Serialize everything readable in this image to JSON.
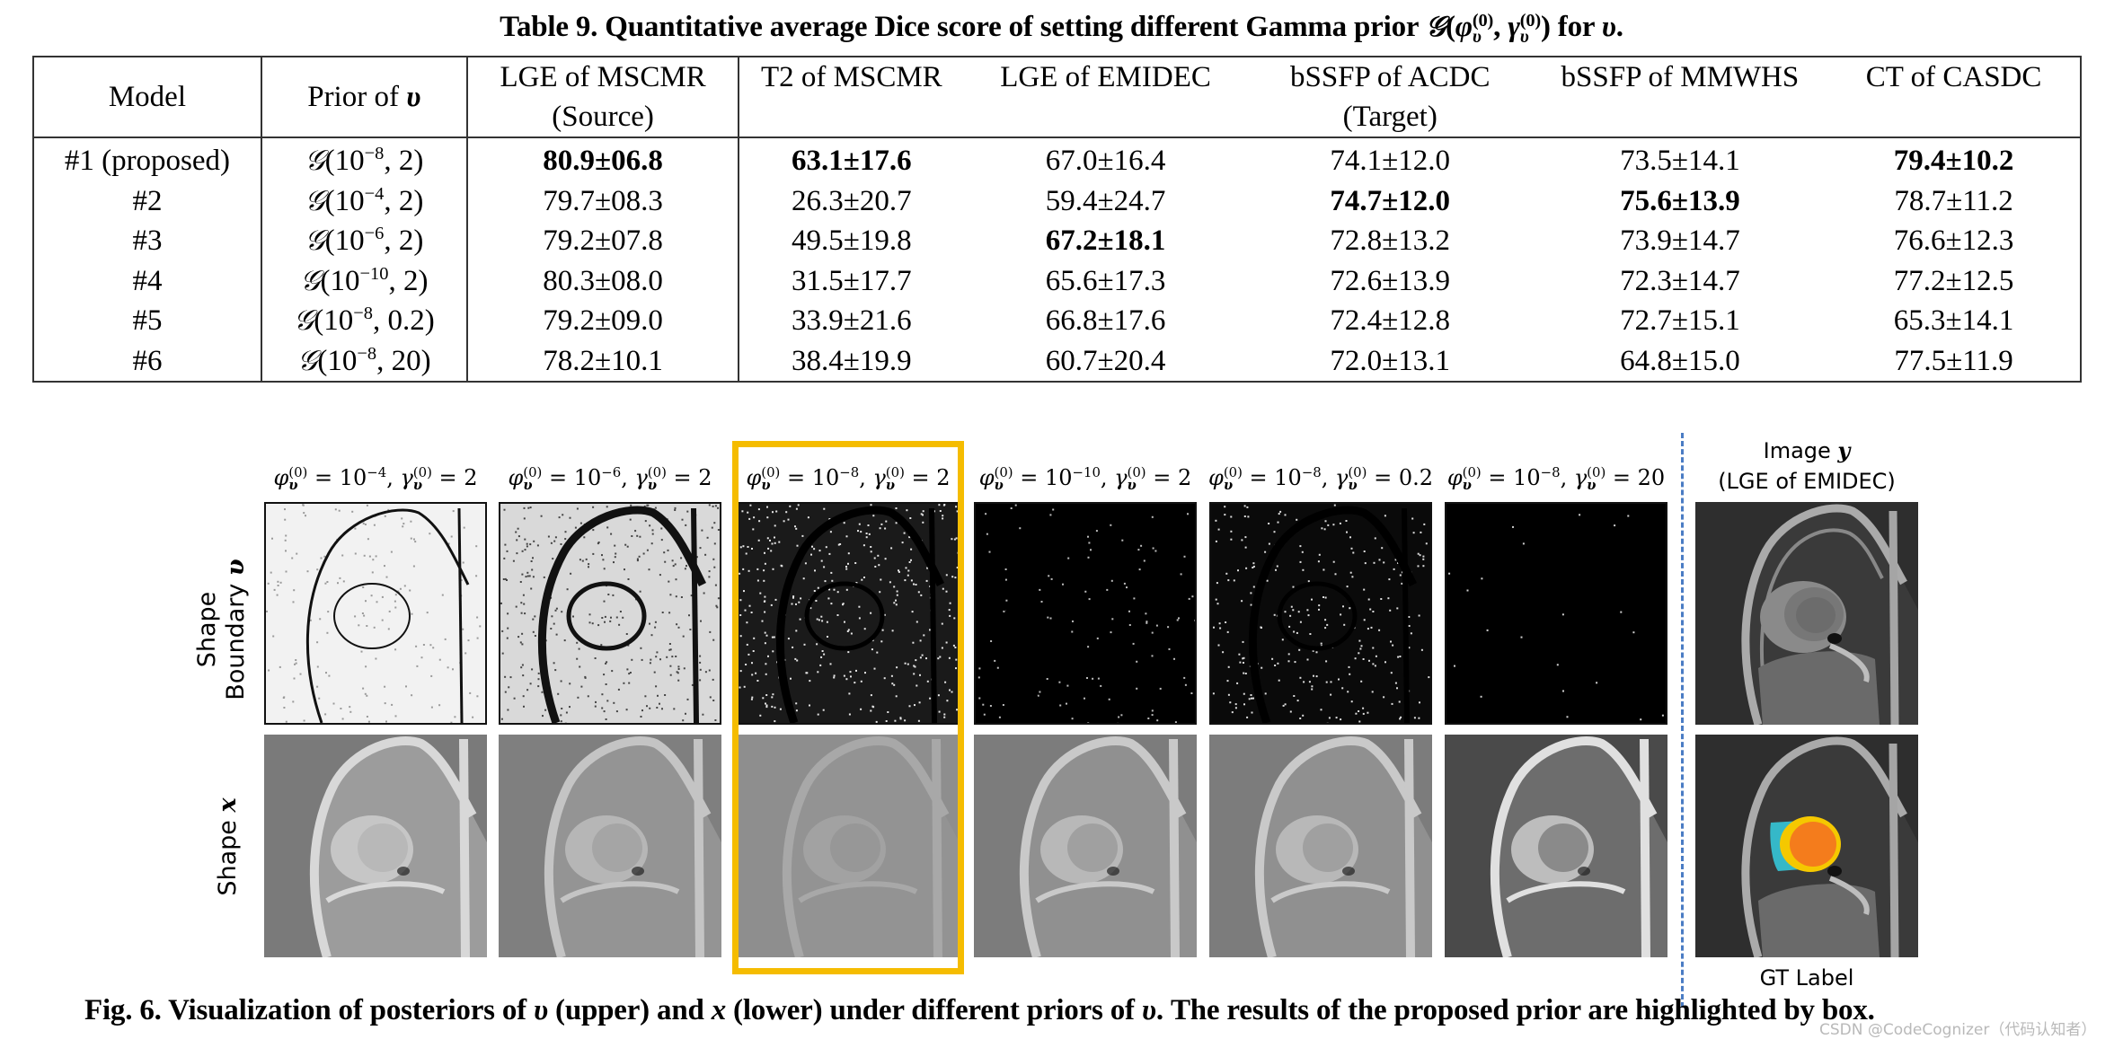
{
  "table": {
    "caption_prefix": "Table 9. Quantitative average Dice score of setting different Gamma prior ",
    "caption_symbol": "𝒢",
    "caption_args": "(φ_υ^(0), γ_υ^(0))",
    "caption_suffix": " for ",
    "caption_var": "υ",
    "caption_end": ".",
    "headers": [
      {
        "line1": "Model",
        "line2": ""
      },
      {
        "line1": "Prior of ",
        "var": "υ",
        "line2": ""
      },
      {
        "line1": "LGE of MSCMR",
        "line2": "(Source)"
      },
      {
        "line1": "T2 of MSCMR",
        "line2": ""
      },
      {
        "line1": "LGE of EMIDEC",
        "line2": ""
      },
      {
        "line1": "bSSFP of ACDC",
        "line2": "(Target)"
      },
      {
        "line1": "bSSFP of MMWHS",
        "line2": ""
      },
      {
        "line1": "CT of CASDC",
        "line2": ""
      }
    ],
    "rows": [
      {
        "model": "#1 (proposed)",
        "prior_exp": "−8",
        "prior_gamma": "2",
        "values": [
          "80.9±06.8",
          "63.1±17.6",
          "67.0±16.4",
          "74.1±12.0",
          "73.5±14.1",
          "79.4±10.2"
        ],
        "bold": [
          true,
          true,
          false,
          false,
          false,
          true
        ]
      },
      {
        "model": "#2",
        "prior_exp": "−4",
        "prior_gamma": "2",
        "values": [
          "79.7±08.3",
          "26.3±20.7",
          "59.4±24.7",
          "74.7±12.0",
          "75.6±13.9",
          "78.7±11.2"
        ],
        "bold": [
          false,
          false,
          false,
          true,
          true,
          false
        ]
      },
      {
        "model": "#3",
        "prior_exp": "−6",
        "prior_gamma": "2",
        "values": [
          "79.2±07.8",
          "49.5±19.8",
          "67.2±18.1",
          "72.8±13.2",
          "73.9±14.7",
          "76.6±12.3"
        ],
        "bold": [
          false,
          false,
          true,
          false,
          false,
          false
        ]
      },
      {
        "model": "#4",
        "prior_exp": "−10",
        "prior_gamma": "2",
        "values": [
          "80.3±08.0",
          "31.5±17.7",
          "65.6±17.3",
          "72.6±13.9",
          "72.3±14.7",
          "77.2±12.5"
        ],
        "bold": [
          false,
          false,
          false,
          false,
          false,
          false
        ]
      },
      {
        "model": "#5",
        "prior_exp": "−8",
        "prior_gamma": "0.2",
        "values": [
          "79.2±09.0",
          "33.9±21.6",
          "66.8±17.6",
          "72.4±12.8",
          "72.7±15.1",
          "65.3±14.1"
        ],
        "bold": [
          false,
          false,
          false,
          false,
          false,
          false
        ]
      },
      {
        "model": "#6",
        "prior_exp": "−8",
        "prior_gamma": "20",
        "values": [
          "78.2±10.1",
          "38.4±19.9",
          "60.7±20.4",
          "72.0±13.1",
          "64.8±15.0",
          "77.5±11.9"
        ],
        "bold": [
          false,
          false,
          false,
          false,
          false,
          false
        ]
      }
    ]
  },
  "chart_data": {
    "type": "table",
    "title": "Table 9. Quantitative average Dice score of setting different Gamma prior G(φ_υ^(0), γ_υ^(0)) for υ.",
    "columns": [
      "Model",
      "Prior of υ",
      "LGE of MSCMR (Source)",
      "T2 of MSCMR",
      "LGE of EMIDEC",
      "bSSFP of ACDC",
      "bSSFP of MMWHS",
      "CT of CASDC"
    ],
    "column_group": {
      "Source": [
        "LGE of MSCMR"
      ],
      "Target": [
        "T2 of MSCMR",
        "LGE of EMIDEC",
        "bSSFP of ACDC",
        "bSSFP of MMWHS",
        "CT of CASDC"
      ]
    },
    "rows": [
      [
        "#1 (proposed)",
        "G(10^-8, 2)",
        "80.9±06.8",
        "63.1±17.6",
        "67.0±16.4",
        "74.1±12.0",
        "73.5±14.1",
        "79.4±10.2"
      ],
      [
        "#2",
        "G(10^-4, 2)",
        "79.7±08.3",
        "26.3±20.7",
        "59.4±24.7",
        "74.7±12.0",
        "75.6±13.9",
        "78.7±11.2"
      ],
      [
        "#3",
        "G(10^-6, 2)",
        "79.2±07.8",
        "49.5±19.8",
        "67.2±18.1",
        "72.8±13.2",
        "73.9±14.7",
        "76.6±12.3"
      ],
      [
        "#4",
        "G(10^-10, 2)",
        "80.3±08.0",
        "31.5±17.7",
        "65.6±17.3",
        "72.6±13.9",
        "72.3±14.7",
        "77.2±12.5"
      ],
      [
        "#5",
        "G(10^-8, 0.2)",
        "79.2±09.0",
        "33.9±21.6",
        "66.8±17.6",
        "72.4±12.8",
        "72.7±15.1",
        "65.3±14.1"
      ],
      [
        "#6",
        "G(10^-8, 20)",
        "78.2±10.1",
        "38.4±19.9",
        "60.7±20.4",
        "72.0±13.1",
        "64.8±15.0",
        "77.5±11.9"
      ]
    ],
    "best_in_column": {
      "LGE of MSCMR": "#1",
      "T2 of MSCMR": "#1",
      "LGE of EMIDEC": "#3",
      "bSSFP of ACDC": "#2",
      "bSSFP of MMWHS": "#2",
      "CT of CASDC": "#1"
    }
  },
  "figure": {
    "columns": [
      {
        "phi_exp": "−4",
        "gamma": "2",
        "style": "light"
      },
      {
        "phi_exp": "−6",
        "gamma": "2",
        "style": "medium"
      },
      {
        "phi_exp": "−8",
        "gamma": "2",
        "style": "proposed",
        "highlighted": true
      },
      {
        "phi_exp": "−10",
        "gamma": "2",
        "style": "dark"
      },
      {
        "phi_exp": "−8",
        "gamma": "0.2",
        "style": "darkmed"
      },
      {
        "phi_exp": "−8",
        "gamma": "20",
        "style": "black"
      }
    ],
    "title_phi": "φ",
    "title_gamma": "γ",
    "title_sub": "υ",
    "title_sup": "(0)",
    "title_eq": " = 10",
    "row_labels": {
      "top_line1": "Shape",
      "top_line2": "Boundary ",
      "top_var": "υ",
      "bottom_text": "Shape ",
      "bottom_var": "x"
    },
    "reference": {
      "title_line1": "Image ",
      "title_var": "y",
      "title_line2": "(LGE of EMIDEC)",
      "label_bottom": "GT Label"
    },
    "colors": {
      "highlight_box": "#f5bc00",
      "divider": "#4a7cc4",
      "label_myocardium": "#f5c800",
      "label_lv": "#f47c1c",
      "label_rv": "#35b8c8"
    },
    "caption_prefix": "Fig. 6. Visualization of posteriors of ",
    "caption_v": "υ",
    "caption_mid1": " (upper) and ",
    "caption_x": "x",
    "caption_mid2": " (lower) under different priors of ",
    "caption_v2": "υ",
    "caption_end": ". The results of the proposed prior are highlighted by box."
  },
  "watermark": "CSDN @CodeCognizer（代码认知者）"
}
